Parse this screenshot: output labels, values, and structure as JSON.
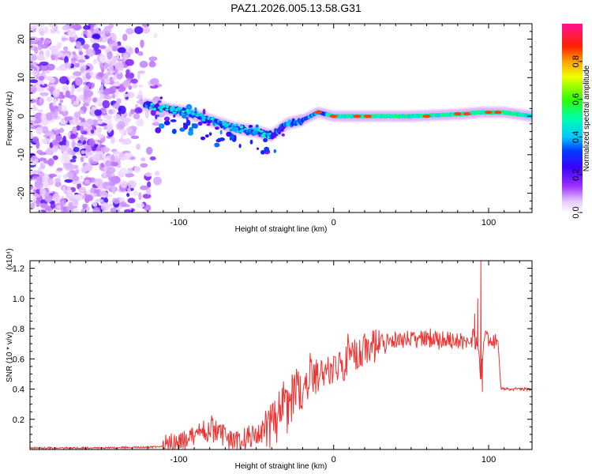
{
  "title": "PAZ1.2026.005.13.58.G31",
  "chart_data": [
    {
      "type": "heatmap",
      "xlabel": "Height of straight line (km)",
      "ylabel": "Frequency (Hz)",
      "xlim": [
        -196,
        128
      ],
      "ylim": [
        -25,
        24
      ],
      "xticks": [
        -100,
        0,
        100
      ],
      "xtick_labels": [
        "-100",
        "0",
        "100"
      ],
      "yticks": [
        20,
        10,
        0,
        -10,
        -20
      ],
      "ytick_labels": [
        "20",
        "10",
        "0",
        "-10",
        "-20"
      ],
      "colorbar": {
        "label": "Normalized spectral amplitude",
        "range": [
          0,
          1
        ],
        "ticks": [
          0.0,
          0.2,
          0.4,
          0.6,
          0.8
        ],
        "tick_labels": [
          "0.0",
          "0.2",
          "0.4",
          "0.6",
          "0.8"
        ],
        "colormap": "rainbow (white-violet-blue-cyan-green-yellow-red-magenta)"
      },
      "features": [
        {
          "name": "scattered noise",
          "x_range": [
            -196,
            -110
          ],
          "freq_range": [
            -25,
            24
          ],
          "amplitude": 0.12
        },
        {
          "name": "main band",
          "points": [
            [
              -122,
              3
            ],
            [
              -110,
              2
            ],
            [
              -95,
              1
            ],
            [
              -80,
              -1
            ],
            [
              -65,
              -3
            ],
            [
              -50,
              -4
            ],
            [
              -40,
              -5
            ],
            [
              -30,
              -2
            ],
            [
              -20,
              -1
            ],
            [
              -10,
              1
            ],
            [
              0,
              0
            ],
            [
              20,
              0
            ],
            [
              50,
              0
            ],
            [
              80,
              0.5
            ],
            [
              95,
              1
            ],
            [
              110,
              1
            ],
            [
              128,
              0
            ]
          ],
          "amplitude": "0.3-1.0"
        }
      ]
    },
    {
      "type": "line",
      "xlabel": "Height of straight line (km)",
      "ylabel": "SNR (10 * v/v)",
      "y_multiplier": "(x10⁴)",
      "xlim": [
        -196,
        128
      ],
      "ylim": [
        0,
        1.25
      ],
      "xticks": [
        -100,
        0,
        100
      ],
      "xtick_labels": [
        "-100",
        "0",
        "100"
      ],
      "yticks": [
        0.2,
        0.4,
        0.6,
        0.8,
        1.0,
        1.2
      ],
      "ytick_labels": [
        "0.2",
        "0.4",
        "0.6",
        "0.8",
        "1.0",
        "1.2"
      ],
      "series": [
        {
          "name": "SNR",
          "color": "#ee3333",
          "x": [
            -196,
            -180,
            -160,
            -140,
            -120,
            -110,
            -100,
            -95,
            -90,
            -85,
            -80,
            -75,
            -70,
            -65,
            -60,
            -55,
            -50,
            -45,
            -40,
            -36,
            -34,
            -30,
            -25,
            -20,
            -15,
            -10,
            -5,
            0,
            5,
            10,
            15,
            20,
            25,
            30,
            40,
            50,
            60,
            70,
            80,
            85,
            90,
            93,
            95,
            97,
            100,
            106,
            108,
            115,
            128
          ],
          "y": [
            0.01,
            0.01,
            0.01,
            0.012,
            0.015,
            0.02,
            0.04,
            0.07,
            0.09,
            0.11,
            0.13,
            0.12,
            0.08,
            0.06,
            0.06,
            0.08,
            0.1,
            0.13,
            0.15,
            0.2,
            0.25,
            0.3,
            0.37,
            0.42,
            0.46,
            0.5,
            0.52,
            0.55,
            0.56,
            0.6,
            0.62,
            0.65,
            0.67,
            0.7,
            0.72,
            0.73,
            0.73,
            0.73,
            0.72,
            0.72,
            0.74,
            0.7,
            0.5,
            0.75,
            0.72,
            0.72,
            0.4,
            0.4,
            0.4
          ]
        }
      ],
      "spikes": [
        {
          "x": 91,
          "y": 0.9
        },
        {
          "x": 93,
          "y": 1.0
        },
        {
          "x": 95,
          "y": 1.25
        },
        {
          "x": 96,
          "y": 0.38
        }
      ]
    }
  ]
}
